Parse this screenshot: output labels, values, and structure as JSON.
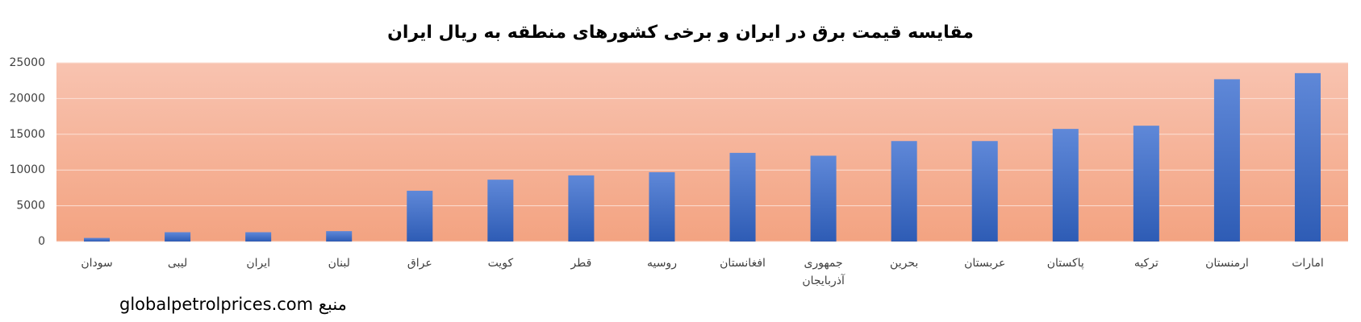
{
  "chart_data": {
    "type": "bar",
    "title": "مقایسه قیمت برق در ایران و برخی کشورهای منطقه به ریال ایران",
    "source": "منبع  globalpetrolprices.com",
    "categories": [
      "سودان",
      "لیبی",
      "ایران",
      "لبنان",
      "عراق",
      "کویت",
      "قطر",
      "روسیه",
      "افغانستان",
      "جمهوری آذربایجان",
      "بحرین",
      "عربستان",
      "پاکستان",
      "ترکیه",
      "ارمنستان",
      "امارات"
    ],
    "values": [
      500,
      1300,
      1300,
      1450,
      7100,
      8650,
      9250,
      9700,
      12400,
      12000,
      14050,
      14050,
      15750,
      16200,
      22700,
      23550
    ],
    "color": "#4472c4",
    "ylim": [
      0,
      25000
    ],
    "yticks": [
      0,
      5000,
      10000,
      15000,
      20000,
      25000
    ],
    "grid": true
  }
}
